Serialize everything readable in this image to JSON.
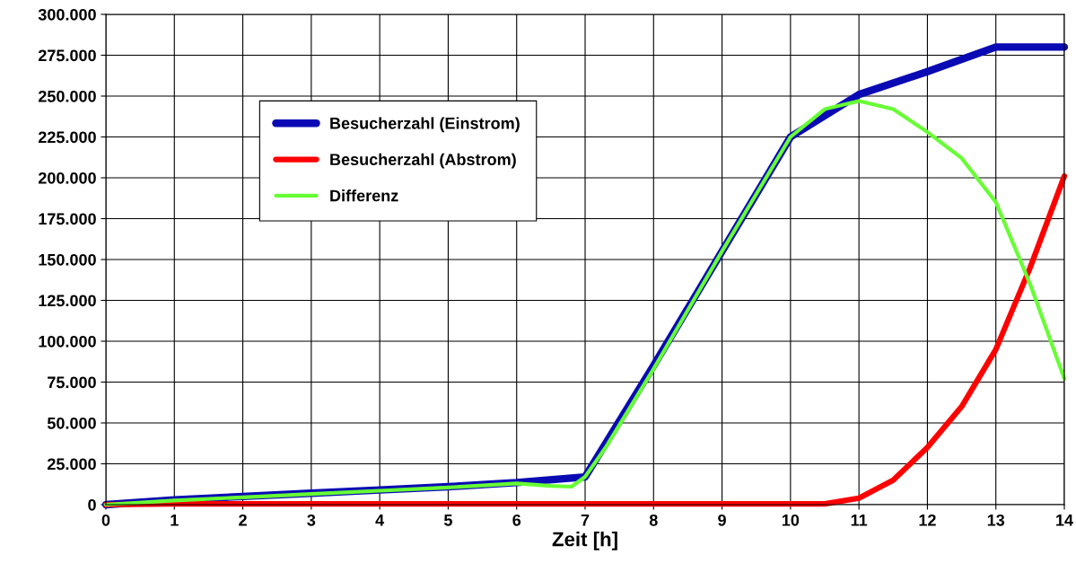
{
  "chart_data": {
    "type": "line",
    "xlabel": "Zeit [h]",
    "xlim": [
      0,
      14
    ],
    "xticks": [
      0,
      1,
      2,
      3,
      4,
      5,
      6,
      7,
      8,
      9,
      10,
      11,
      12,
      13,
      14
    ],
    "ylim": [
      0,
      300000
    ],
    "yticks": [
      {
        "value": 0,
        "label": "0"
      },
      {
        "value": 25000,
        "label": "25.000"
      },
      {
        "value": 50000,
        "label": "50.000"
      },
      {
        "value": 75000,
        "label": "75.000"
      },
      {
        "value": 100000,
        "label": "100.000"
      },
      {
        "value": 125000,
        "label": "125.000"
      },
      {
        "value": 150000,
        "label": "150.000"
      },
      {
        "value": 175000,
        "label": "175.000"
      },
      {
        "value": 200000,
        "label": "200.000"
      },
      {
        "value": 225000,
        "label": "225.000"
      },
      {
        "value": 250000,
        "label": "250.000"
      },
      {
        "value": 275000,
        "label": "275.000"
      },
      {
        "value": 300000,
        "label": "300.000"
      }
    ],
    "grid": true,
    "legend": "top left",
    "marker": "none",
    "line_style": "solid",
    "series": [
      {
        "name": "Besucherzahl (Einstrom)",
        "color": "#0a0ab4",
        "x": [
          0,
          1,
          2,
          3,
          4,
          5,
          6,
          7,
          8,
          9,
          10,
          11,
          12,
          13,
          14
        ],
        "values": [
          0,
          3000,
          5000,
          7000,
          9000,
          11000,
          13500,
          17000,
          85000,
          155000,
          225000,
          251000,
          265000,
          280000,
          280000
        ]
      },
      {
        "name": "Besucherzahl (Abstrom)",
        "color": "#ff0000",
        "x": [
          0,
          1,
          2,
          3,
          4,
          5,
          6,
          7,
          8,
          9,
          10,
          10.5,
          11,
          11.5,
          12,
          12.5,
          13,
          13.5,
          14
        ],
        "values": [
          0,
          500,
          500,
          500,
          500,
          500,
          500,
          500,
          500,
          500,
          500,
          500,
          4000,
          15000,
          35000,
          60000,
          95000,
          145000,
          201000
        ]
      },
      {
        "name": "Differenz",
        "color": "#66ff33",
        "x": [
          0,
          1,
          2,
          3,
          4,
          5,
          6,
          6.5,
          6.8,
          7,
          7.3,
          8,
          9,
          10,
          10.5,
          11,
          11.5,
          12,
          12.5,
          13,
          13.5,
          14
        ],
        "values": [
          0,
          2500,
          4500,
          6500,
          8500,
          10500,
          13000,
          11500,
          11000,
          17000,
          35000,
          83000,
          155000,
          225000,
          242000,
          247000,
          242000,
          228000,
          212000,
          185000,
          135000,
          77000
        ]
      }
    ]
  }
}
